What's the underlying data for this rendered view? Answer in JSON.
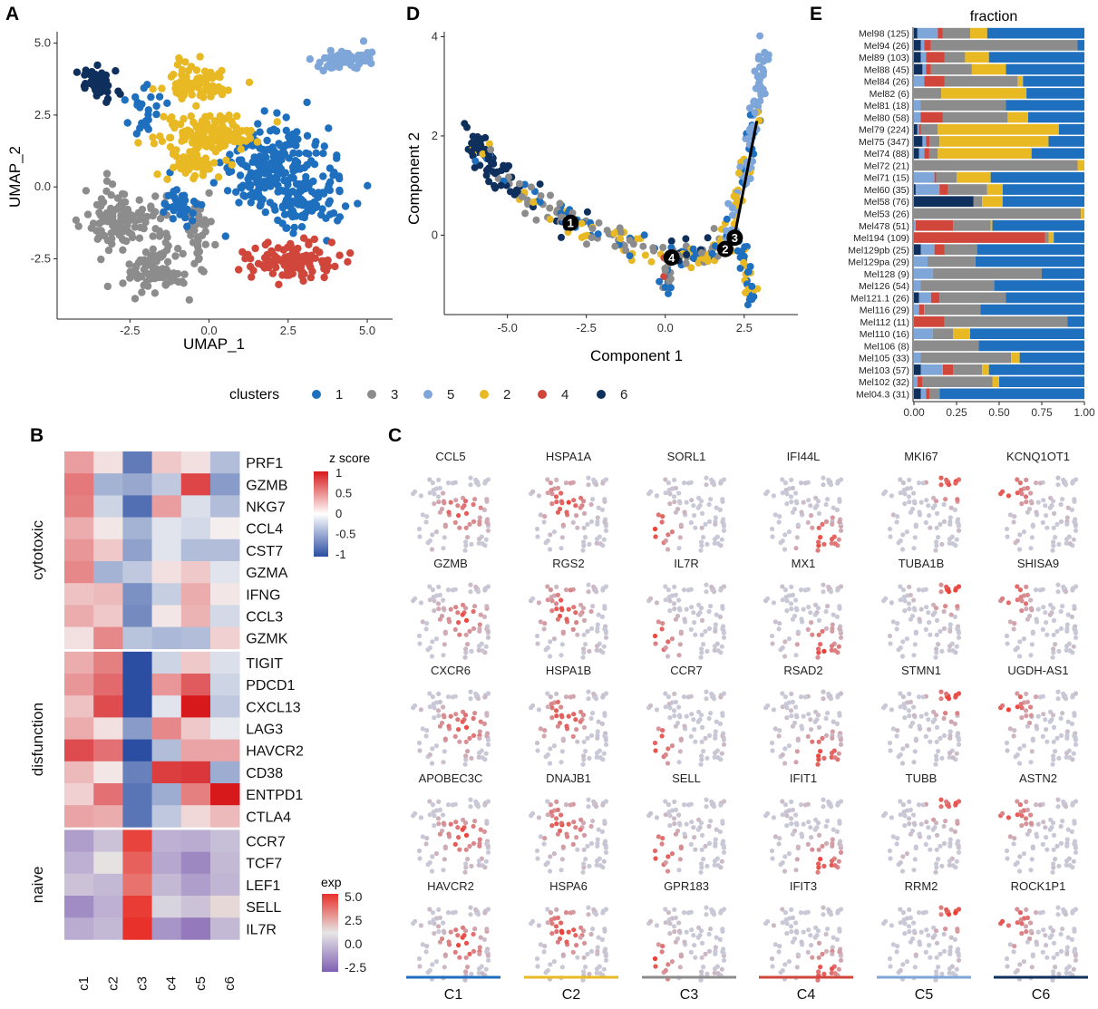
{
  "panel_labels": {
    "A": "A",
    "B": "B",
    "C": "C",
    "D": "D",
    "E": "E"
  },
  "colors": {
    "c1": "#1f6fbf",
    "c2": "#e8b923",
    "c3": "#8c8c8c",
    "c4": "#d0463b",
    "c5": "#7fa6d8",
    "c6": "#0f2f5c"
  },
  "chart_data": [
    {
      "id": "A",
      "type": "scatter",
      "title": "",
      "xlabel": "UMAP_1",
      "ylabel": "UMAP_2",
      "xlim": [
        -4.8,
        5.8
      ],
      "ylim": [
        -4.6,
        5.4
      ],
      "xticks": [
        "-2.5",
        "0.0",
        "2.5",
        "5.0"
      ],
      "xtick_values": [
        -2.5,
        0,
        2.5,
        5
      ],
      "yticks": [
        "-2.5",
        "0.0",
        "2.5",
        "5.0"
      ],
      "ytick_values": [
        -2.5,
        0,
        2.5,
        5
      ],
      "series": [
        {
          "name": "3",
          "color": "#8c8c8c",
          "regions": [
            [
              -2.7,
              -1.2,
              1.3,
              1.1,
              120
            ],
            [
              -1.7,
              -3.0,
              1.0,
              0.9,
              90
            ],
            [
              -0.4,
              -1.5,
              0.5,
              1.3,
              40
            ]
          ]
        },
        {
          "name": "1",
          "color": "#1f6fbf",
          "regions": [
            [
              2.2,
              0.6,
              1.8,
              1.6,
              220
            ],
            [
              3.0,
              -0.6,
              1.7,
              1.0,
              80
            ],
            [
              -0.8,
              -0.8,
              0.8,
              0.8,
              30
            ],
            [
              -2.2,
              2.6,
              0.8,
              0.8,
              25
            ]
          ]
        },
        {
          "name": "2",
          "color": "#e8b923",
          "regions": [
            [
              0.0,
              1.8,
              1.4,
              0.7,
              160
            ],
            [
              -0.3,
              3.6,
              1.0,
              0.7,
              80
            ],
            [
              -0.4,
              0.8,
              0.9,
              0.5,
              40
            ]
          ]
        },
        {
          "name": "4",
          "color": "#d0463b",
          "regions": [
            [
              2.5,
              -2.6,
              1.4,
              0.6,
              120
            ]
          ]
        },
        {
          "name": "5",
          "color": "#7fa6d8",
          "regions": [
            [
              4.2,
              4.4,
              1.0,
              0.35,
              60
            ]
          ]
        },
        {
          "name": "6",
          "color": "#0f2f5c",
          "regions": [
            [
              -3.4,
              3.6,
              0.6,
              0.6,
              45
            ]
          ]
        }
      ]
    },
    {
      "id": "D",
      "type": "scatter",
      "title": "",
      "xlabel": "Component 1",
      "ylabel": "Component 2",
      "xlim": [
        -7.0,
        4.2
      ],
      "ylim": [
        -1.6,
        4.1
      ],
      "xticks": [
        "-5.0",
        "-2.5",
        "0.0",
        "2.5"
      ],
      "xtick_values": [
        -5,
        -2.5,
        0,
        2.5
      ],
      "yticks": [
        "0",
        "2",
        "4"
      ],
      "ytick_values": [
        0,
        2,
        4
      ],
      "branch_points": [
        {
          "label": "1",
          "x": -3.0,
          "y": 0.25
        },
        {
          "label": "4",
          "x": 0.2,
          "y": -0.45
        },
        {
          "label": "2",
          "x": 1.9,
          "y": -0.28
        },
        {
          "label": "3",
          "x": 2.2,
          "y": -0.05
        }
      ]
    },
    {
      "id": "E",
      "type": "bar",
      "orientation": "horizontal",
      "stacked": true,
      "title": "fraction",
      "xlim": [
        0,
        1
      ],
      "xticks": [
        "0.00",
        "0.25",
        "0.50",
        "0.75",
        "1.00"
      ],
      "stack_order": [
        "6",
        "5",
        "4",
        "3",
        "2",
        "1"
      ],
      "categories": [
        "Mel98 (125)",
        "Mel94 (26)",
        "Mel89 (103)",
        "Mel88 (45)",
        "Mel84 (26)",
        "Mel82 (6)",
        "Mel81 (18)",
        "Mel80 (58)",
        "Mel79 (224)",
        "Mel75 (347)",
        "Mel74 (88)",
        "Mel72 (21)",
        "Mel71 (15)",
        "Mel60 (35)",
        "Mel58 (76)",
        "Mel53 (26)",
        "Mel478 (51)",
        "Mel194 (109)",
        "Mel129pb (25)",
        "Mel129pa (29)",
        "Mel128 (9)",
        "Mel126 (54)",
        "Mel121.1 (26)",
        "Mel116 (29)",
        "Mel112 (11)",
        "Mel110 (16)",
        "Mel106 (8)",
        "Mel105 (33)",
        "Mel103 (57)",
        "Mel102 (32)",
        "Mel04.3 (31)"
      ],
      "series": [
        {
          "name": "6",
          "values": [
            0.02,
            0.04,
            0.04,
            0.05,
            0,
            0,
            0,
            0,
            0.02,
            0.05,
            0.03,
            0,
            0,
            0.01,
            0.35,
            0,
            0,
            0,
            0.04,
            0,
            0,
            0,
            0.03,
            0,
            0,
            0,
            0,
            0,
            0.04,
            0,
            0.04
          ]
        },
        {
          "name": "5",
          "values": [
            0.12,
            0.02,
            0.03,
            0.02,
            0.06,
            0,
            0.04,
            0.04,
            0.01,
            0.02,
            0.03,
            0,
            0.12,
            0.14,
            0,
            0,
            0.01,
            0,
            0.08,
            0.08,
            0.11,
            0.04,
            0.07,
            0.03,
            0,
            0.11,
            0,
            0.04,
            0.13,
            0.02,
            0.03
          ]
        },
        {
          "name": "4",
          "values": [
            0.03,
            0.04,
            0.11,
            0.03,
            0.12,
            0,
            0,
            0.13,
            0.01,
            0.02,
            0.03,
            0,
            0.01,
            0.05,
            0,
            0,
            0.22,
            0.77,
            0.06,
            0,
            0,
            0,
            0.05,
            0.03,
            0.18,
            0,
            0,
            0,
            0.06,
            0.03,
            0.02
          ]
        },
        {
          "name": "3",
          "values": [
            0.16,
            0.86,
            0.12,
            0.24,
            0.43,
            0.16,
            0.5,
            0.38,
            0.1,
            0.06,
            0.05,
            0.96,
            0.12,
            0.23,
            0.05,
            0.98,
            0.22,
            0.02,
            0.19,
            0.28,
            0.64,
            0.43,
            0.39,
            0.33,
            0.72,
            0.12,
            0.38,
            0.53,
            0.17,
            0.41,
            0.06
          ]
        },
        {
          "name": "2",
          "values": [
            0.1,
            0,
            0.14,
            0.2,
            0.03,
            0.5,
            0,
            0.12,
            0.71,
            0.64,
            0.55,
            0.04,
            0.2,
            0.09,
            0.12,
            0.02,
            0.01,
            0.03,
            0,
            0,
            0,
            0,
            0,
            0,
            0,
            0.1,
            0,
            0.05,
            0.04,
            0.04,
            0
          ]
        },
        {
          "name": "1",
          "values": [
            0.57,
            0.04,
            0.56,
            0.46,
            0.36,
            0.34,
            0.46,
            0.33,
            0.15,
            0.21,
            0.31,
            0,
            0.55,
            0.48,
            0.48,
            0,
            0.54,
            0.18,
            0.63,
            0.64,
            0.25,
            0.53,
            0.46,
            0.61,
            0.1,
            0.67,
            0.62,
            0.38,
            0.56,
            0.5,
            0.85
          ]
        }
      ]
    },
    {
      "id": "B",
      "type": "heatmap",
      "title": "",
      "columns": [
        "c1",
        "c2",
        "c3",
        "c4",
        "c5",
        "c6"
      ],
      "rows": [
        "PRF1",
        "GZMB",
        "NKG7",
        "CCL4",
        "CST7",
        "GZMA",
        "IFNG",
        "CCL3",
        "GZMK",
        "TIGIT",
        "PDCD1",
        "CXCL13",
        "LAG3",
        "HAVCR2",
        "CD38",
        "ENTPD1",
        "CTLA4",
        "CCR7",
        "TCF7",
        "LEF1",
        "SELL",
        "IL7R"
      ],
      "groups": [
        {
          "name": "cytotoxic",
          "rows": 9
        },
        {
          "name": "disfunction",
          "rows": 8
        },
        {
          "name": "naive",
          "rows": 5
        }
      ],
      "values": [
        [
          1.2,
          0.3,
          -2.2,
          0.6,
          0.3,
          -1.0
        ],
        [
          1.7,
          -1.2,
          -1.4,
          -0.8,
          2.4,
          -1.6
        ],
        [
          1.6,
          -0.6,
          -2.4,
          1.2,
          -0.4,
          -1.0
        ],
        [
          1.0,
          0.2,
          -1.2,
          -0.3,
          -0.5,
          0.1
        ],
        [
          1.3,
          0.6,
          -1.5,
          -0.3,
          -1.0,
          -1.0
        ],
        [
          1.5,
          -1.2,
          -0.8,
          0.3,
          0.6,
          -0.3
        ],
        [
          0.7,
          0.8,
          -1.8,
          -0.7,
          1.0,
          0.2
        ],
        [
          1.0,
          0.6,
          -1.9,
          0.2,
          0.9,
          -0.5
        ],
        [
          0.3,
          1.5,
          -0.9,
          -1.1,
          -1.0,
          0.5
        ],
        [
          1.0,
          1.6,
          -3.0,
          -0.6,
          0.6,
          -0.4
        ],
        [
          1.3,
          1.9,
          -3.0,
          1.3,
          2.1,
          -0.6
        ],
        [
          0.7,
          2.3,
          -3.0,
          -0.3,
          3.3,
          -0.8
        ],
        [
          1.0,
          0.3,
          -1.6,
          1.5,
          0.6,
          -0.2
        ],
        [
          2.3,
          1.8,
          -3.0,
          -1.0,
          1.1,
          1.1
        ],
        [
          0.8,
          0.2,
          -2.1,
          2.5,
          2.6,
          -1.3
        ],
        [
          0.5,
          1.8,
          -2.3,
          -1.3,
          1.6,
          4.2
        ],
        [
          1.1,
          1.0,
          -2.3,
          -0.8,
          0.4,
          0.8
        ],
        [
          -1.6,
          -0.8,
          4.5,
          -1.2,
          -1.3,
          -0.9
        ],
        [
          -1.2,
          0.1,
          3.7,
          -1.4,
          -2.1,
          -1.0
        ],
        [
          -0.8,
          -1.0,
          3.2,
          -1.0,
          -1.6,
          -1.1
        ],
        [
          -2.0,
          -1.2,
          4.7,
          -0.4,
          -0.8,
          0.4
        ],
        [
          -1.3,
          -1.0,
          5.0,
          -1.8,
          -2.4,
          -1.0
        ]
      ],
      "zscore_legend": {
        "title": "z score",
        "ticks": [
          "1",
          "0.5",
          "0",
          "-0.5",
          "-1"
        ]
      },
      "exp_legend": {
        "title": "exp",
        "ticks": [
          "5.0",
          "2.5",
          "0.0",
          "-2.5"
        ]
      }
    },
    {
      "id": "C",
      "type": "scatter",
      "title": "",
      "gene_rows": [
        [
          "CCL5",
          "HSPA1A",
          "SORL1",
          "IFI44L",
          "MKI67",
          "KCNQ1OT1"
        ],
        [
          "GZMB",
          "RGS2",
          "IL7R",
          "MX1",
          "TUBA1B",
          "SHISA9"
        ],
        [
          "CXCR6",
          "HSPA1B",
          "CCR7",
          "RSAD2",
          "STMN1",
          "UGDH-AS1"
        ],
        [
          "APOBEC3C",
          "DNAJB1",
          "SELL",
          "IFIT1",
          "TUBB",
          "ASTN2"
        ],
        [
          "HAVCR2",
          "HSPA6",
          "GPR183",
          "IFIT3",
          "RRM2",
          "ROCK1P1"
        ]
      ],
      "column_clusters": [
        {
          "label": "C1",
          "cluster": "1"
        },
        {
          "label": "C2",
          "cluster": "2"
        },
        {
          "label": "C3",
          "cluster": "3"
        },
        {
          "label": "C4",
          "cluster": "4"
        },
        {
          "label": "C5",
          "cluster": "5"
        },
        {
          "label": "C6",
          "cluster": "6"
        }
      ]
    }
  ],
  "legend": {
    "title": "clusters",
    "items": [
      {
        "label": "1",
        "cluster": "1"
      },
      {
        "label": "3",
        "cluster": "3"
      },
      {
        "label": "5",
        "cluster": "5"
      },
      {
        "label": "2",
        "cluster": "2"
      },
      {
        "label": "4",
        "cluster": "4"
      },
      {
        "label": "6",
        "cluster": "6"
      }
    ]
  }
}
